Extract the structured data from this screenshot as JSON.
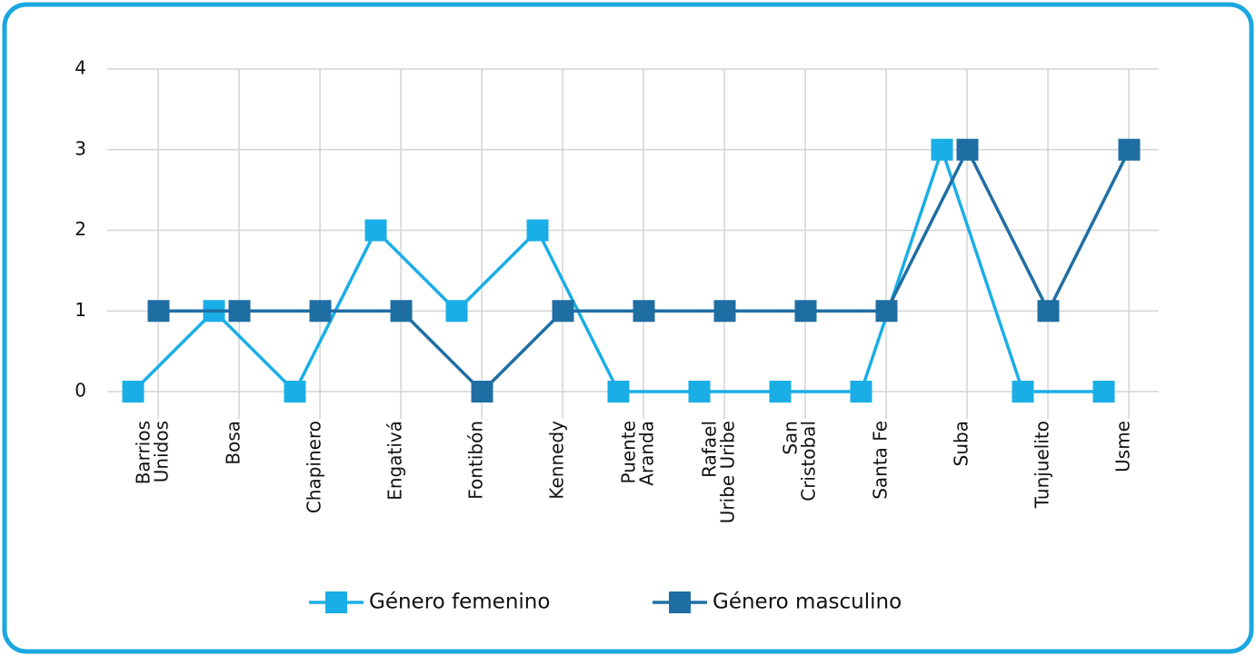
{
  "chart_data": {
    "type": "line",
    "categories": [
      "Barrios\nUnidos",
      "Bosa",
      "Chapinero",
      "Engativá",
      "Fontibón",
      "Kennedy",
      "Puente\nAranda",
      "Rafael\nUribe Uribe",
      "San\nCristobal",
      "Santa Fe",
      "Suba",
      "Tunjuelito",
      "Usme"
    ],
    "series": [
      {
        "name": "Género femenino",
        "color": "#1aaee6",
        "values": [
          0,
          1,
          0,
          2,
          1,
          2,
          0,
          0,
          0,
          0,
          3,
          0,
          0
        ]
      },
      {
        "name": "Género masculino",
        "color": "#1f6ea3",
        "values": [
          1,
          1,
          1,
          1,
          0,
          1,
          1,
          1,
          1,
          1,
          3,
          1,
          3
        ]
      }
    ],
    "ylim": [
      0,
      4
    ],
    "yticks": [
      0,
      1,
      2,
      3,
      4
    ],
    "grid": true,
    "legend": "bottom"
  }
}
